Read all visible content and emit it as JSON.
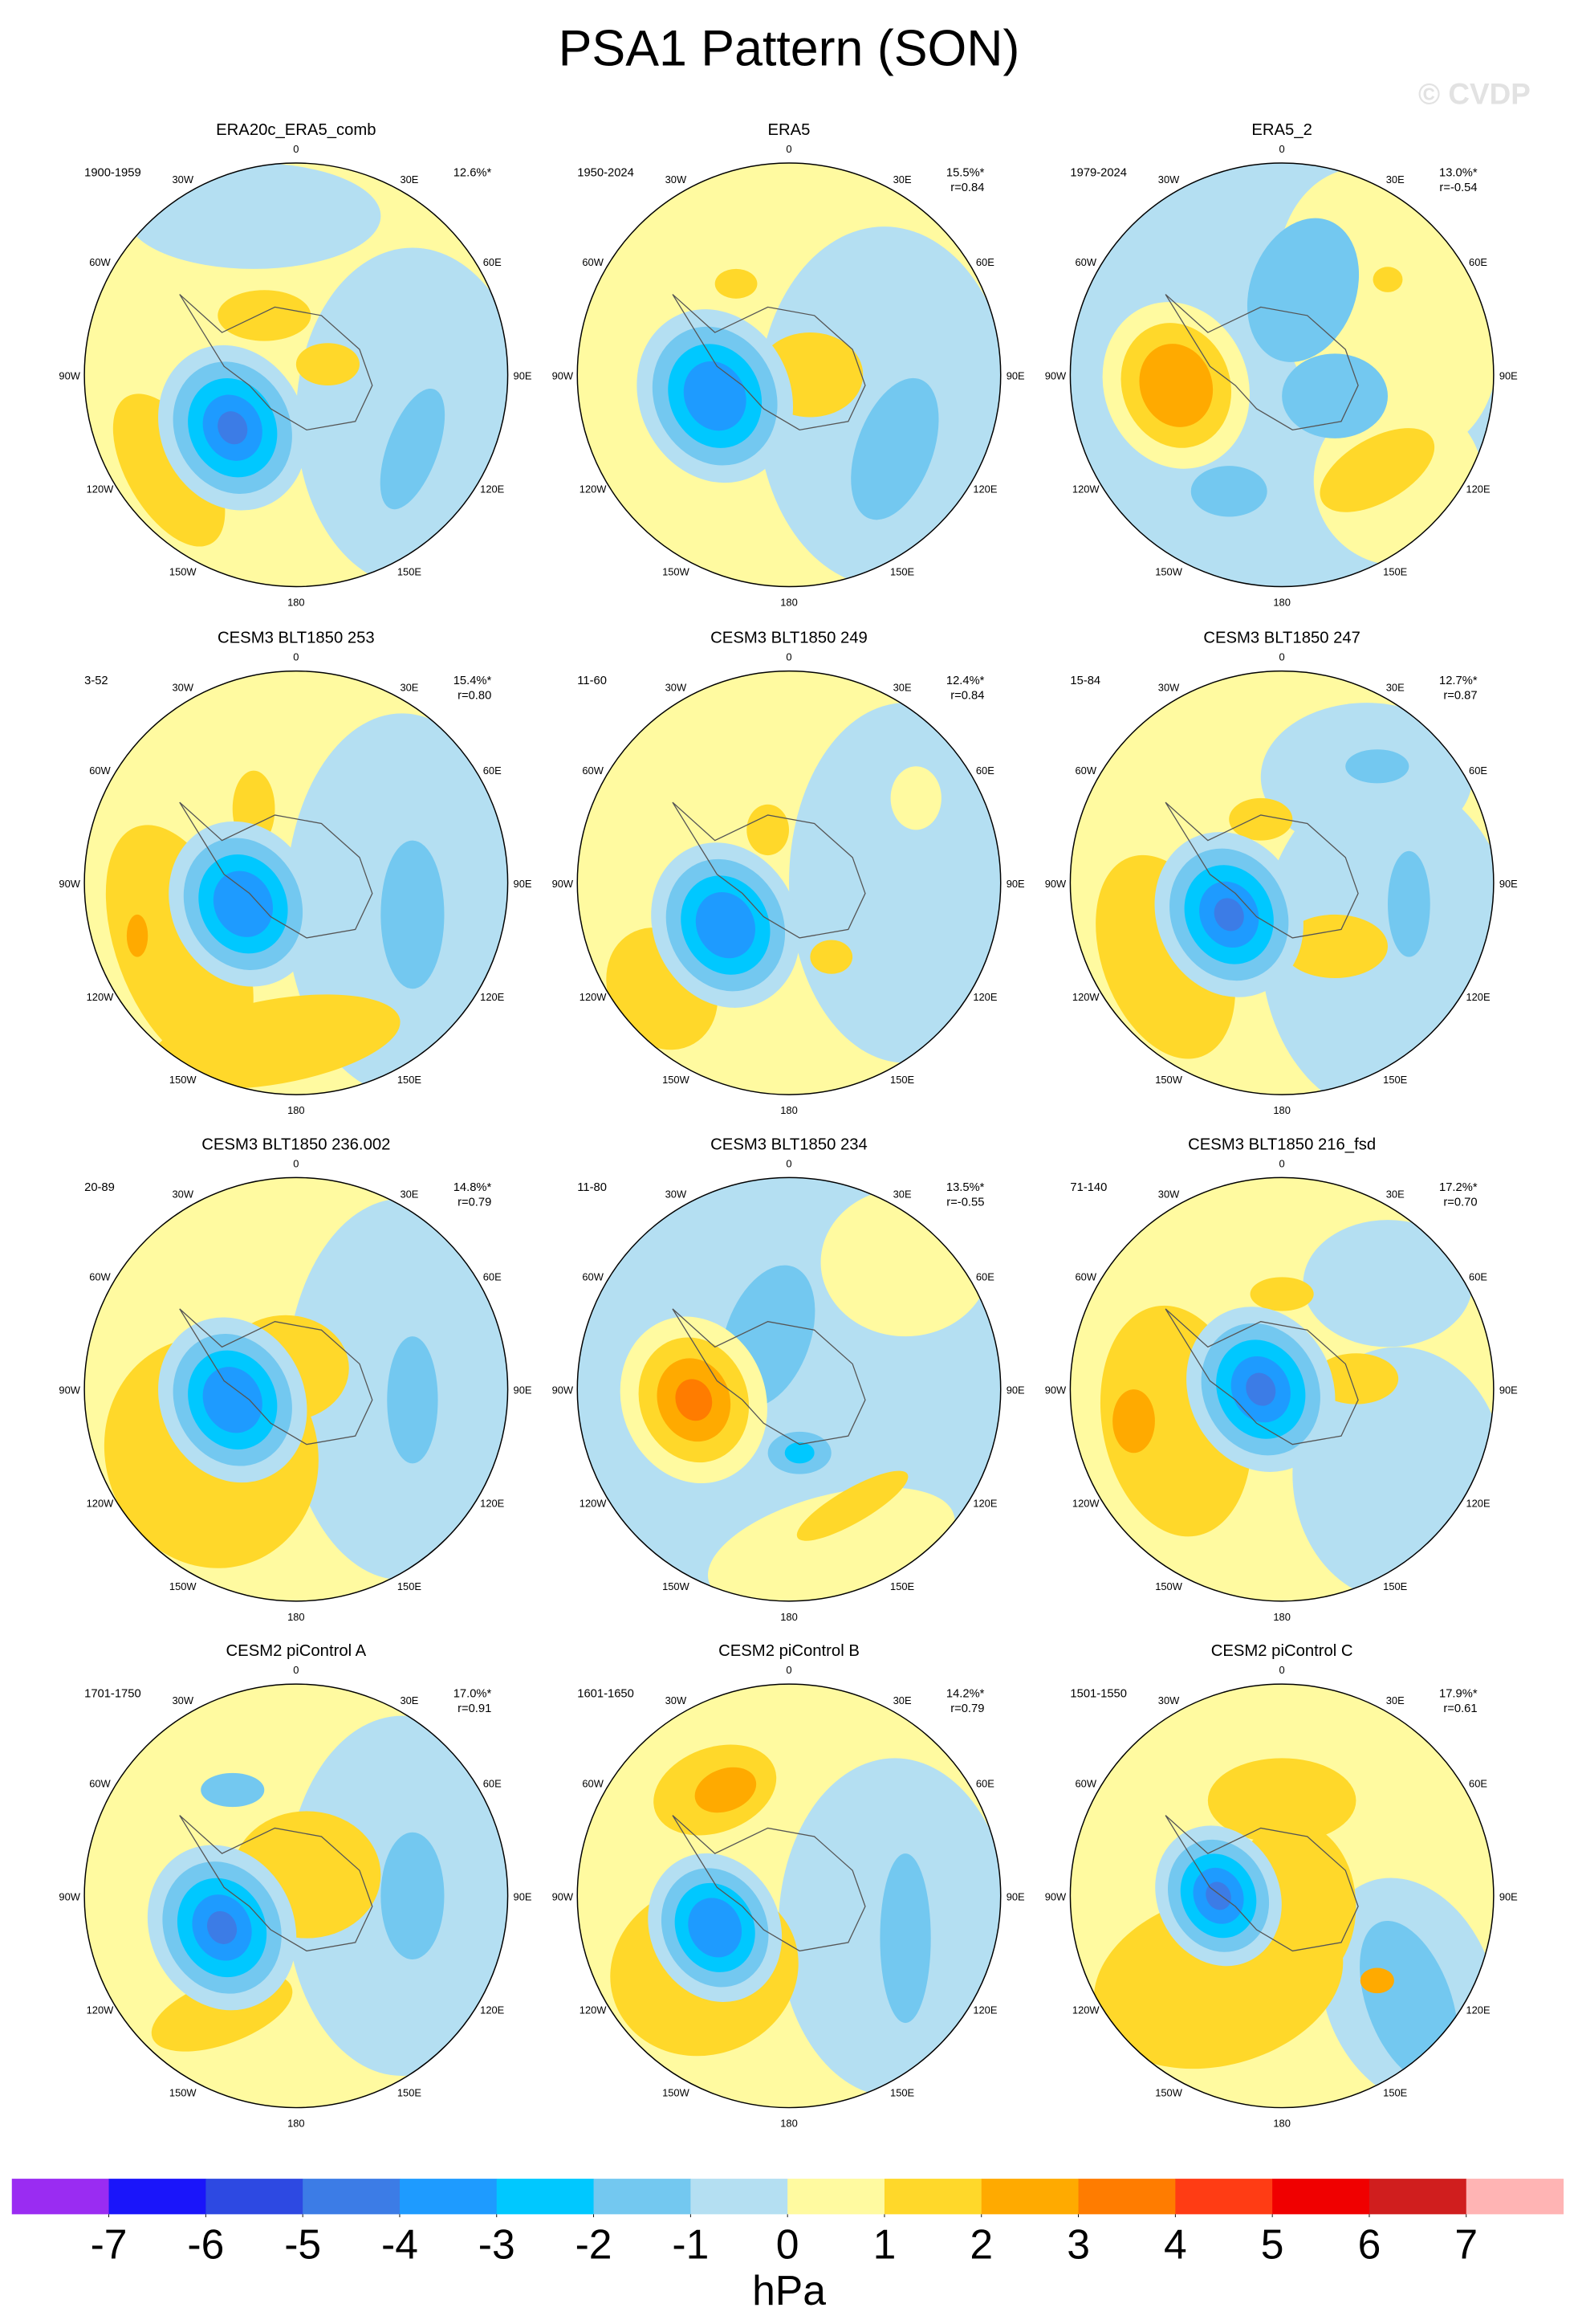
{
  "title": "PSA1 Pattern (SON)",
  "watermark": "© CVDP",
  "longitude_labels": [
    "0",
    "30E",
    "60E",
    "90E",
    "120E",
    "150E",
    "180",
    "150W",
    "120W",
    "90W",
    "60W",
    "30W"
  ],
  "panels": [
    {
      "title": "ERA20c_ERA5_comb",
      "period": "1900-1959",
      "variance": "12.6%*"
    },
    {
      "title": "ERA5",
      "period": "1950-2024",
      "variance": "15.5%*",
      "r": "r=0.84"
    },
    {
      "title": "ERA5_2",
      "period": "1979-2024",
      "variance": "13.0%*",
      "r": "r=-0.54"
    },
    {
      "title": "CESM3 BLT1850 253",
      "period": "3-52",
      "variance": "15.4%*",
      "r": "r=0.80"
    },
    {
      "title": "CESM3 BLT1850 249",
      "period": "11-60",
      "variance": "12.4%*",
      "r": "r=0.84"
    },
    {
      "title": "CESM3 BLT1850 247",
      "period": "15-84",
      "variance": "12.7%*",
      "r": "r=0.87"
    },
    {
      "title": "CESM3 BLT1850 236.002",
      "period": "20-89",
      "variance": "14.8%*",
      "r": "r=0.79"
    },
    {
      "title": "CESM3 BLT1850 234",
      "period": "11-80",
      "variance": "13.5%*",
      "r": "r=-0.55"
    },
    {
      "title": "CESM3 BLT1850 216_fsd",
      "period": "71-140",
      "variance": "17.2%*",
      "r": "r=0.70"
    },
    {
      "title": "CESM2 piControl A",
      "period": "1701-1750",
      "variance": "17.0%*",
      "r": "r=0.91"
    },
    {
      "title": "CESM2 piControl B",
      "period": "1601-1650",
      "variance": "14.2%*",
      "r": "r=0.79"
    },
    {
      "title": "CESM2 piControl C",
      "period": "1501-1550",
      "variance": "17.9%*",
      "r": "r=0.61"
    }
  ],
  "colorbar": {
    "levels": [
      -7,
      -6,
      -5,
      -4,
      -3,
      -2,
      -1,
      0,
      1,
      2,
      3,
      4,
      5,
      6,
      7
    ],
    "colors": [
      "#9a2cf2",
      "#1a15fa",
      "#2d49e2",
      "#3c7ce6",
      "#1e9bff",
      "#00c8ff",
      "#73c8f0",
      "#b4dff2",
      "#fffaa0",
      "#ffd82a",
      "#ffaa00",
      "#ff7c00",
      "#ff3c14",
      "#f00000",
      "#d01e1e",
      "#ffb4b4"
    ],
    "unit": "hPa"
  }
}
